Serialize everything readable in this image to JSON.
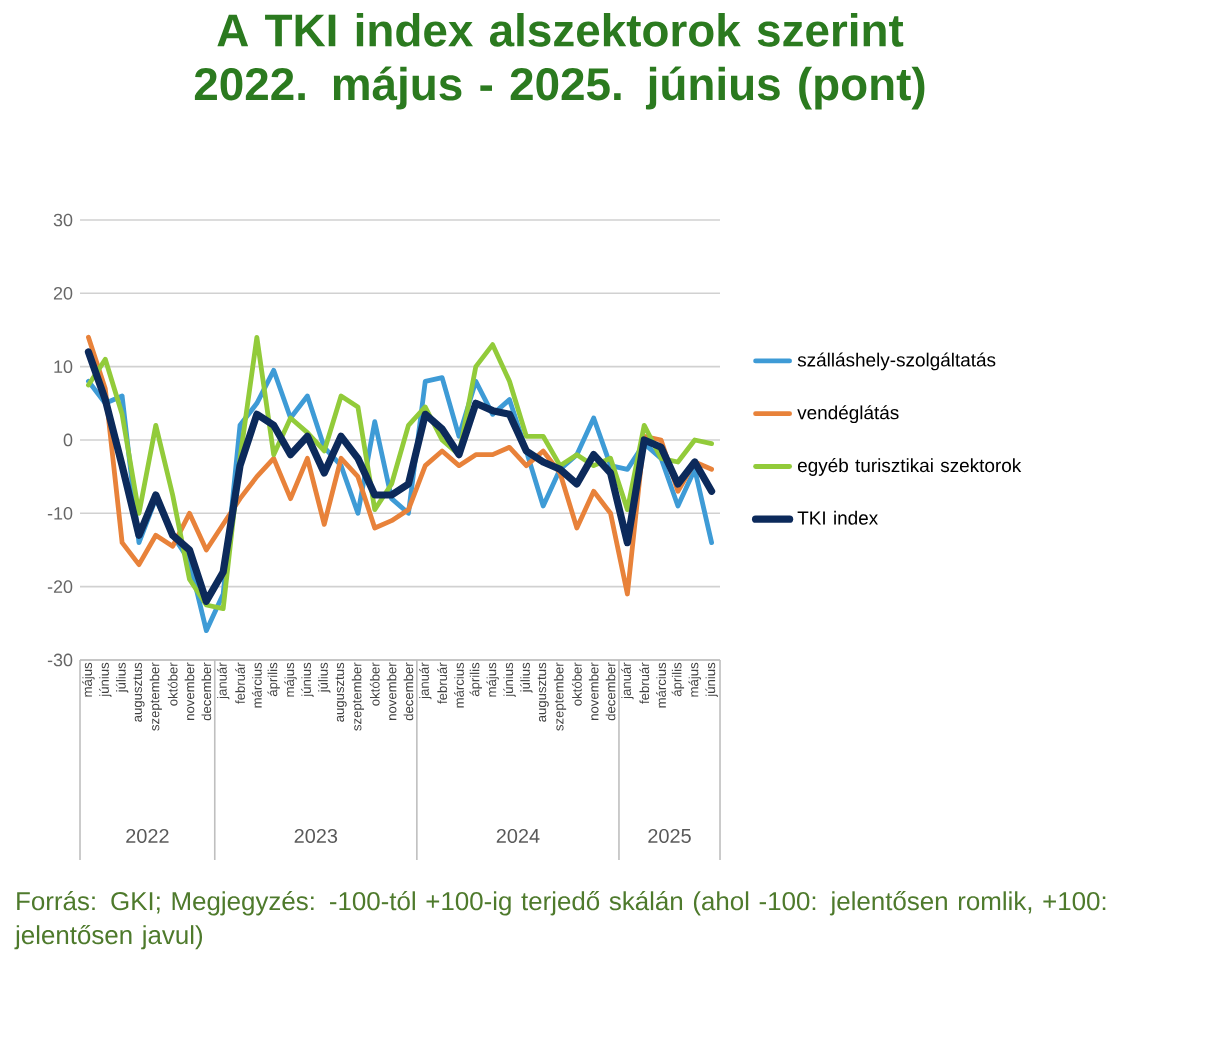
{
  "chart_data": {
    "type": "line",
    "title": "A TKI index alszektorok szerint 2022. május - 2025. június (pont)",
    "categories": [
      "május",
      "június",
      "július",
      "augusztus",
      "szeptember",
      "október",
      "november",
      "december",
      "január",
      "február",
      "március",
      "április",
      "május",
      "június",
      "július",
      "augusztus",
      "szeptember",
      "október",
      "november",
      "december",
      "január",
      "február",
      "március",
      "április",
      "május",
      "június",
      "július",
      "augusztus",
      "szeptember",
      "október",
      "november",
      "december",
      "január",
      "február",
      "március",
      "április",
      "május",
      "június"
    ],
    "series": [
      {
        "name": "szálláshely-szolgáltatás",
        "color": "#3e9bd6",
        "values": [
          8,
          5,
          6,
          -14,
          -8,
          -13,
          -16.5,
          -26,
          -21,
          2,
          5,
          9.5,
          3,
          6,
          -1,
          -3.5,
          -10,
          2.5,
          -8,
          -10,
          8,
          8.5,
          0.5,
          8,
          3.5,
          5.5,
          -1.5,
          -9,
          -4,
          -2,
          3,
          -3.5,
          -4,
          -0.5,
          -2.5,
          -9,
          -4,
          -14
        ]
      },
      {
        "name": "vendéglátás",
        "color": "#e8823a",
        "values": [
          14,
          7,
          -14,
          -17,
          -13,
          -14.5,
          -10,
          -15,
          -11.5,
          -8,
          -5,
          -2.5,
          -8,
          -2.5,
          -11.5,
          -2.5,
          -5,
          -12,
          -11,
          -9.5,
          -3.5,
          -1.5,
          -3.5,
          -2,
          -2,
          -1,
          -3.5,
          -1.5,
          -4.5,
          -12,
          -7,
          -10,
          -21,
          0.5,
          0,
          -7,
          -3,
          -4
        ]
      },
      {
        "name": "egyéb turisztikai szektorok",
        "color": "#92cb3a",
        "values": [
          7.5,
          11,
          3.5,
          -10,
          2,
          -7.5,
          -19,
          -22.5,
          -23,
          -2.5,
          14,
          -2,
          3,
          1,
          -1.5,
          6,
          4.5,
          -9.5,
          -6,
          2,
          4.5,
          0,
          -2,
          10,
          13,
          8,
          0.5,
          0.5,
          -3.5,
          -2,
          -3.5,
          -2.5,
          -9.5,
          2,
          -2.5,
          -3,
          0,
          -0.5
        ]
      },
      {
        "name": "TKI index",
        "color": "#0c2a5b",
        "values": [
          12,
          5.5,
          -3.5,
          -13,
          -7.5,
          -13,
          -15,
          -22,
          -18,
          -3.5,
          3.5,
          2,
          -2,
          0.5,
          -4.5,
          0.5,
          -2.5,
          -7.5,
          -7.5,
          -6,
          3.5,
          1.5,
          -2,
          5,
          4,
          3.5,
          -1.5,
          -3,
          -4,
          -6,
          -2,
          -4.5,
          -14,
          0,
          -1,
          -6,
          -3,
          -7
        ]
      }
    ],
    "ylim": [
      -30,
      30
    ],
    "yticks": [
      -30,
      -20,
      -10,
      0,
      10,
      20,
      30
    ],
    "grid": "y",
    "legend": "right",
    "annotations": [
      "2022",
      "2023",
      "2024",
      "2025",
      "Forrás: GKI; Megjegyzés: -100-tól +100-ig terjedő skálán (ahol -100: jelentősen romlik, +100: jelentősen javul)"
    ]
  }
}
